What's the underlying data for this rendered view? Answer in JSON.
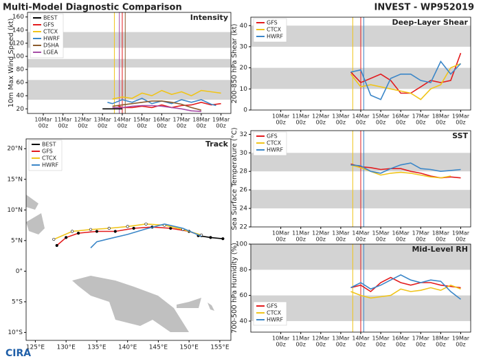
{
  "header": {
    "title": "Multi-Model Diagnostic Comparison",
    "subtitle": "INVEST - WP952019"
  },
  "logo": "CIRA",
  "chart_data": [
    {
      "type": "line",
      "title": "Intensity",
      "ylabel": "10m Max Wind Speed (kt)",
      "legend": "upper left",
      "xlim": [
        9.2,
        19.5
      ],
      "ylim": [
        13,
        167
      ],
      "yticks": [
        20,
        40,
        60,
        80,
        100,
        120,
        140,
        160
      ],
      "xticks": [
        {
          "value": 10,
          "label": [
            "10Mar",
            "00z"
          ]
        },
        {
          "value": 11,
          "label": [
            "11Mar",
            "00z"
          ]
        },
        {
          "value": 12,
          "label": [
            "12Mar",
            "00z"
          ]
        },
        {
          "value": 13,
          "label": [
            "13Mar",
            "00z"
          ]
        },
        {
          "value": 14,
          "label": [
            "14Mar",
            "00z"
          ]
        },
        {
          "value": 15,
          "label": [
            "15Mar",
            "00z"
          ]
        },
        {
          "value": 16,
          "label": [
            "16Mar",
            "00z"
          ]
        },
        {
          "value": 17,
          "label": [
            "17Mar",
            "00z"
          ]
        },
        {
          "value": 18,
          "label": [
            "18Mar",
            "00z"
          ]
        },
        {
          "value": 19,
          "label": [
            "19Mar",
            "00z"
          ]
        }
      ],
      "bands": [
        [
          34,
          64
        ],
        [
          83,
          96
        ],
        [
          113,
          137
        ]
      ],
      "band_color": "#d3d3d3",
      "init_lines": [
        {
          "x": 13.6,
          "color": "#f0c419"
        },
        {
          "x": 13.85,
          "color": "#a64ca6"
        },
        {
          "x": 14.0,
          "color": "#e31a1c"
        },
        {
          "x": 14.15,
          "color": "#8b5a2b"
        }
      ],
      "series": [
        {
          "name": "BEST",
          "color": "#000000",
          "x": [
            13,
            13.25,
            13.5,
            13.75,
            14
          ],
          "values": [
            20,
            20,
            20,
            20,
            20
          ]
        },
        {
          "name": "GFS",
          "color": "#e31a1c",
          "x": [
            13.75,
            14,
            14.5,
            15,
            15.5,
            16,
            16.5,
            17,
            17.5,
            18,
            18.5,
            19
          ],
          "values": [
            25,
            22,
            22,
            24,
            22,
            26,
            22,
            25,
            26,
            30,
            26,
            28
          ]
        },
        {
          "name": "CTCX",
          "color": "#f0c419",
          "x": [
            13.5,
            14,
            14.5,
            15,
            15.5,
            16,
            16.5,
            17,
            17.5,
            18,
            18.5,
            19
          ],
          "values": [
            35,
            38,
            36,
            44,
            40,
            48,
            42,
            46,
            40,
            48,
            46,
            44
          ]
        },
        {
          "name": "HWRF",
          "color": "#3a86c8",
          "x": [
            13.25,
            13.5,
            14,
            14.5,
            15,
            15.5,
            16,
            16.5,
            17,
            17.5,
            18,
            18.5,
            18.75
          ],
          "values": [
            30,
            28,
            34,
            30,
            36,
            28,
            32,
            28,
            34,
            30,
            34,
            27,
            25
          ]
        },
        {
          "name": "DSHA",
          "color": "#8b5a2b",
          "x": [
            13.5,
            14,
            14.5,
            15,
            15.5,
            16,
            16.5,
            17,
            17.5,
            18
          ],
          "values": [
            24,
            26,
            28,
            30,
            32,
            32,
            30,
            27,
            22,
            18
          ]
        },
        {
          "name": "LGEA",
          "color": "#a64ca6",
          "x": [
            13.5,
            14,
            14.5,
            15,
            15.5,
            16,
            16.5,
            17,
            17.5,
            18
          ],
          "values": [
            22,
            22,
            24,
            25,
            25,
            24,
            22,
            20,
            17,
            16
          ]
        }
      ]
    },
    {
      "type": "line",
      "title": "Deep-Layer Shear",
      "ylabel": "200-850 hPa Shear (kt)",
      "legend": "upper left",
      "xlim": [
        8.5,
        19.5
      ],
      "ylim": [
        0,
        44
      ],
      "yticks": [
        0,
        10,
        20,
        30,
        40
      ],
      "xticks": [
        {
          "value": 10,
          "label": [
            "10Mar",
            "00z"
          ]
        },
        {
          "value": 11,
          "label": [
            "11Mar",
            "00z"
          ]
        },
        {
          "value": 12,
          "label": [
            "12Mar",
            "00z"
          ]
        },
        {
          "value": 13,
          "label": [
            "13Mar",
            "00z"
          ]
        },
        {
          "value": 14,
          "label": [
            "14Mar",
            "00z"
          ]
        },
        {
          "value": 15,
          "label": [
            "15Mar",
            "00z"
          ]
        },
        {
          "value": 16,
          "label": [
            "16Mar",
            "00z"
          ]
        },
        {
          "value": 17,
          "label": [
            "17Mar",
            "00z"
          ]
        },
        {
          "value": 18,
          "label": [
            "18Mar",
            "00z"
          ]
        },
        {
          "value": 19,
          "label": [
            "19Mar",
            "00z"
          ]
        }
      ],
      "bands": [
        [
          10,
          20
        ],
        [
          30,
          40
        ]
      ],
      "band_color": "#d3d3d3",
      "init_lines": [
        {
          "x": 13.6,
          "color": "#f0c419"
        },
        {
          "x": 14.0,
          "color": "#e31a1c"
        },
        {
          "x": 14.15,
          "color": "#3a86c8"
        }
      ],
      "series": [
        {
          "name": "GFS",
          "color": "#e31a1c",
          "x": [
            13.5,
            14,
            14.5,
            15,
            15.5,
            16,
            16.5,
            17,
            17.5,
            18,
            18.5,
            19
          ],
          "values": [
            18,
            13,
            15,
            17,
            14,
            8,
            8,
            11,
            14,
            13,
            14,
            27
          ]
        },
        {
          "name": "CTCX",
          "color": "#f0c419",
          "x": [
            13.5,
            14,
            14.5,
            15,
            15.5,
            16,
            16.5,
            17,
            17.5,
            18,
            18.5,
            19
          ],
          "values": [
            17,
            11,
            12,
            11,
            10,
            9,
            8,
            5,
            10,
            12,
            20,
            22
          ]
        },
        {
          "name": "HWRF",
          "color": "#3a86c8",
          "x": [
            13.5,
            14,
            14.5,
            15,
            15.5,
            16,
            16.5,
            17,
            17.5,
            18,
            18.5,
            19
          ],
          "values": [
            18,
            19,
            7,
            5,
            15,
            17,
            17,
            14,
            13,
            23,
            17,
            22
          ]
        }
      ]
    },
    {
      "type": "line",
      "title": "SST",
      "ylabel": "Sea Surface Temperature (°C)",
      "legend": "upper left",
      "xlim": [
        8.5,
        19.5
      ],
      "ylim": [
        22,
        32.4
      ],
      "yticks": [
        22,
        24,
        26,
        28,
        30,
        32
      ],
      "xticks": [
        {
          "value": 10,
          "label": [
            "10Mar",
            "00z"
          ]
        },
        {
          "value": 11,
          "label": [
            "11Mar",
            "00z"
          ]
        },
        {
          "value": 12,
          "label": [
            "12Mar",
            "00z"
          ]
        },
        {
          "value": 13,
          "label": [
            "13Mar",
            "00z"
          ]
        },
        {
          "value": 14,
          "label": [
            "14Mar",
            "00z"
          ]
        },
        {
          "value": 15,
          "label": [
            "15Mar",
            "00z"
          ]
        },
        {
          "value": 16,
          "label": [
            "16Mar",
            "00z"
          ]
        },
        {
          "value": 17,
          "label": [
            "17Mar",
            "00z"
          ]
        },
        {
          "value": 18,
          "label": [
            "18Mar",
            "00z"
          ]
        },
        {
          "value": 19,
          "label": [
            "19Mar",
            "00z"
          ]
        }
      ],
      "bands": [
        [
          24,
          26
        ],
        [
          28,
          30
        ]
      ],
      "band_color": "#d3d3d3",
      "init_lines": [
        {
          "x": 13.6,
          "color": "#f0c419"
        },
        {
          "x": 14.0,
          "color": "#e31a1c"
        },
        {
          "x": 14.15,
          "color": "#3a86c8"
        }
      ],
      "series": [
        {
          "name": "GFS",
          "color": "#e31a1c",
          "x": [
            13.5,
            14,
            14.5,
            15,
            15.5,
            16,
            16.5,
            17,
            17.5,
            18,
            18.5,
            19
          ],
          "values": [
            28.8,
            28.5,
            28.4,
            28.2,
            28.3,
            28.3,
            28.0,
            27.8,
            27.5,
            27.3,
            27.4,
            27.3
          ]
        },
        {
          "name": "CTCX",
          "color": "#f0c419",
          "x": [
            13.5,
            14,
            14.5,
            15,
            15.5,
            16,
            16.5,
            17,
            17.5,
            18,
            18.5
          ],
          "values": [
            28.7,
            28.4,
            28.0,
            27.6,
            27.8,
            27.9,
            27.8,
            27.6,
            27.4,
            27.3,
            27.5
          ]
        },
        {
          "name": "HWRF",
          "color": "#3a86c8",
          "x": [
            13.5,
            14,
            14.5,
            15,
            15.5,
            16,
            16.5,
            17,
            17.5,
            18,
            18.5,
            19
          ],
          "values": [
            28.7,
            28.6,
            28.0,
            27.8,
            28.3,
            28.7,
            28.9,
            28.3,
            28.2,
            28.0,
            28.1,
            28.2
          ]
        }
      ]
    },
    {
      "type": "line",
      "title": "Mid-Level RH",
      "ylabel": "700-500 hPa Humidity (%)",
      "legend": "lower left",
      "xlim": [
        8.5,
        19.5
      ],
      "ylim": [
        31.4,
        100
      ],
      "yticks": [
        40,
        60,
        80,
        100
      ],
      "xticks": [
        {
          "value": 10,
          "label": [
            "10Mar",
            "00z"
          ]
        },
        {
          "value": 11,
          "label": [
            "11Mar",
            "00z"
          ]
        },
        {
          "value": 12,
          "label": [
            "12Mar",
            "00z"
          ]
        },
        {
          "value": 13,
          "label": [
            "13Mar",
            "00z"
          ]
        },
        {
          "value": 14,
          "label": [
            "14Mar",
            "00z"
          ]
        },
        {
          "value": 15,
          "label": [
            "15Mar",
            "00z"
          ]
        },
        {
          "value": 16,
          "label": [
            "16Mar",
            "00z"
          ]
        },
        {
          "value": 17,
          "label": [
            "17Mar",
            "00z"
          ]
        },
        {
          "value": 18,
          "label": [
            "18Mar",
            "00z"
          ]
        },
        {
          "value": 19,
          "label": [
            "19Mar",
            "00z"
          ]
        }
      ],
      "bands": [
        [
          40,
          60
        ],
        [
          80,
          100
        ]
      ],
      "band_color": "#d3d3d3",
      "init_lines": [
        {
          "x": 13.6,
          "color": "#f0c419"
        },
        {
          "x": 14.0,
          "color": "#e31a1c"
        },
        {
          "x": 14.15,
          "color": "#3a86c8"
        }
      ],
      "series": [
        {
          "name": "GFS",
          "color": "#e31a1c",
          "x": [
            13.5,
            14,
            14.5,
            15,
            15.5,
            16,
            16.5,
            17,
            17.5,
            18,
            18.5,
            19
          ],
          "values": [
            66,
            68,
            63,
            70,
            74,
            70,
            68,
            70,
            70,
            68,
            67,
            66
          ]
        },
        {
          "name": "CTCX",
          "color": "#f0c419",
          "x": [
            13.5,
            14,
            14.5,
            15,
            15.5,
            16,
            16.5,
            17,
            17.5,
            18,
            18.5,
            19
          ],
          "values": [
            63,
            60,
            58,
            59,
            60,
            65,
            63,
            64,
            66,
            64,
            68,
            65
          ]
        },
        {
          "name": "HWRF",
          "color": "#3a86c8",
          "x": [
            13.5,
            14,
            14.5,
            15,
            15.5,
            16,
            16.5,
            17,
            17.5,
            18,
            18.5,
            19
          ],
          "values": [
            66,
            70,
            65,
            68,
            72,
            76,
            72,
            70,
            72,
            71,
            63,
            57
          ]
        }
      ]
    },
    {
      "type": "track",
      "title": "Track",
      "legend": "upper left",
      "xlim": [
        123.5,
        156.8
      ],
      "ylim": [
        -11.3,
        21.6
      ],
      "xticks": [
        {
          "value": 125,
          "label": "125°E"
        },
        {
          "value": 130,
          "label": "130°E"
        },
        {
          "value": 135,
          "label": "135°E"
        },
        {
          "value": 140,
          "label": "140°E"
        },
        {
          "value": 145,
          "label": "145°E"
        },
        {
          "value": 150,
          "label": "150°E"
        },
        {
          "value": 155,
          "label": "155°E"
        }
      ],
      "yticks": [
        {
          "value": -10,
          "label": "10°S"
        },
        {
          "value": -5,
          "label": "5°S"
        },
        {
          "value": 0,
          "label": "0°"
        },
        {
          "value": 5,
          "label": "5°N"
        },
        {
          "value": 10,
          "label": "10°N"
        },
        {
          "value": 15,
          "label": "15°N"
        },
        {
          "value": 20,
          "label": "20°N"
        }
      ],
      "series": [
        {
          "name": "BEST",
          "color": "#000000",
          "lon": [
            155.5,
            153.5,
            151.5
          ],
          "lat": [
            5.3,
            5.5,
            5.8
          ]
        },
        {
          "name": "GFS",
          "color": "#e31a1c",
          "lon": [
            152,
            150,
            147,
            144,
            141,
            138,
            135,
            132,
            130,
            128.5
          ],
          "lat": [
            5.8,
            6.5,
            7.0,
            7.2,
            7.0,
            6.5,
            6.5,
            6.2,
            5.5,
            4.2
          ]
        },
        {
          "name": "CTCX",
          "color": "#f0c419",
          "lon": [
            152,
            149,
            146,
            143,
            140,
            137,
            134,
            131,
            128
          ],
          "lat": [
            5.9,
            6.8,
            7.5,
            7.7,
            7.3,
            7.0,
            6.8,
            6.5,
            5.2
          ]
        },
        {
          "name": "HWRF",
          "color": "#3a86c8",
          "lon": [
            152,
            149,
            146,
            143,
            140,
            137,
            135,
            134
          ],
          "lat": [
            5.7,
            7.0,
            7.7,
            6.9,
            6.0,
            5.3,
            4.8,
            3.8
          ]
        }
      ]
    }
  ]
}
